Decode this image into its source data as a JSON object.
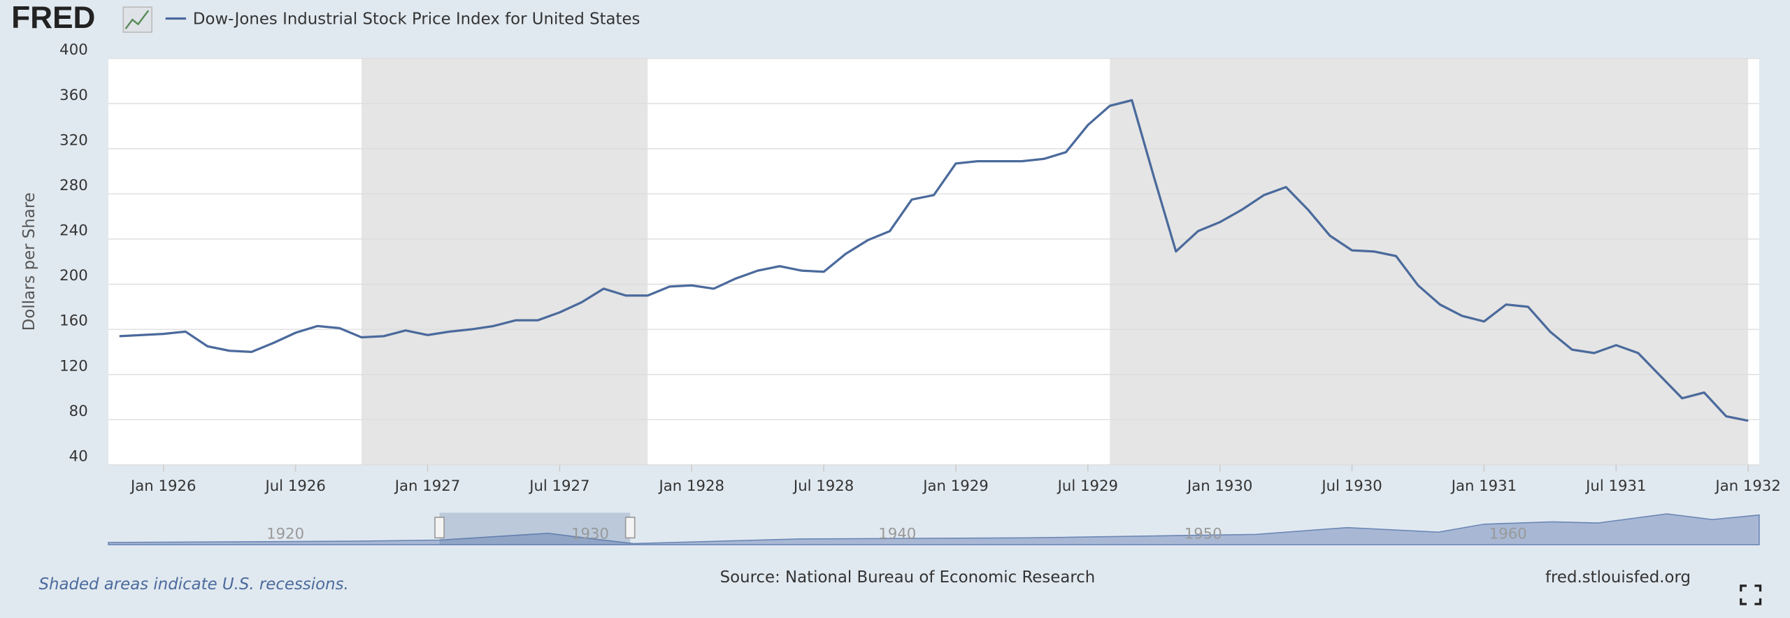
{
  "logo": "FRED",
  "chart_data": {
    "type": "line",
    "title": "Dow-Jones Industrial Stock Price Index for United States",
    "ylabel": "Dollars per Share",
    "x": [
      "1925-11",
      "1925-12",
      "1926-01",
      "1926-02",
      "1926-03",
      "1926-04",
      "1926-05",
      "1926-06",
      "1926-07",
      "1926-08",
      "1926-09",
      "1926-10",
      "1926-11",
      "1926-12",
      "1927-01",
      "1927-02",
      "1927-03",
      "1927-04",
      "1927-05",
      "1927-06",
      "1927-07",
      "1927-08",
      "1927-09",
      "1927-10",
      "1927-11",
      "1927-12",
      "1928-01",
      "1928-02",
      "1928-03",
      "1928-04",
      "1928-05",
      "1928-06",
      "1928-07",
      "1928-08",
      "1928-09",
      "1928-10",
      "1928-11",
      "1928-12",
      "1929-01",
      "1929-02",
      "1929-03",
      "1929-04",
      "1929-05",
      "1929-06",
      "1929-07",
      "1929-08",
      "1929-09",
      "1929-10",
      "1929-11",
      "1929-12",
      "1930-01",
      "1930-02",
      "1930-03",
      "1930-04",
      "1930-05",
      "1930-06",
      "1930-07",
      "1930-08",
      "1930-09",
      "1930-10",
      "1930-11",
      "1930-12",
      "1931-01",
      "1931-02",
      "1931-03",
      "1931-04",
      "1931-05",
      "1931-06",
      "1931-07",
      "1931-08",
      "1931-09",
      "1931-10",
      "1931-11",
      "1931-12",
      "1932-01"
    ],
    "series": [
      {
        "name": "Dow-Jones Industrial Stock Price Index for United States",
        "color": "#4b6a9c",
        "values": [
          154,
          155,
          156,
          158,
          145,
          141,
          140,
          148,
          157,
          163,
          161,
          153,
          154,
          159,
          155,
          158,
          160,
          163,
          168,
          168,
          175,
          184,
          196,
          190,
          190,
          198,
          199,
          196,
          205,
          212,
          216,
          212,
          211,
          227,
          239,
          247,
          275,
          279,
          307,
          309,
          309,
          309,
          311,
          317,
          341,
          358,
          363,
          295,
          229,
          247,
          255,
          266,
          279,
          286,
          266,
          243,
          230,
          229,
          225,
          199,
          182,
          172,
          167,
          182,
          180,
          158,
          142,
          139,
          146,
          139,
          119,
          99,
          104,
          83,
          79
        ]
      }
    ],
    "xlim": [
      "1925-11",
      "1932-01"
    ],
    "xticks": [
      {
        "value": "1926-01",
        "label": "Jan 1926"
      },
      {
        "value": "1926-07",
        "label": "Jul 1926"
      },
      {
        "value": "1927-01",
        "label": "Jan 1927"
      },
      {
        "value": "1927-07",
        "label": "Jul 1927"
      },
      {
        "value": "1928-01",
        "label": "Jan 1928"
      },
      {
        "value": "1928-07",
        "label": "Jul 1928"
      },
      {
        "value": "1929-01",
        "label": "Jan 1929"
      },
      {
        "value": "1929-07",
        "label": "Jul 1929"
      },
      {
        "value": "1930-01",
        "label": "Jan 1930"
      },
      {
        "value": "1930-07",
        "label": "Jul 1930"
      },
      {
        "value": "1931-01",
        "label": "Jan 1931"
      },
      {
        "value": "1931-07",
        "label": "Jul 1931"
      },
      {
        "value": "1932-01",
        "label": "Jan 1932"
      }
    ],
    "ylim": [
      40,
      400
    ],
    "yticks": [
      40,
      80,
      120,
      160,
      200,
      240,
      280,
      320,
      360,
      400
    ],
    "grid": true,
    "recessions": [
      {
        "start": "1926-10",
        "end": "1927-11"
      },
      {
        "start": "1929-08",
        "end": "1932-01"
      }
    ],
    "recession_color": "#e5e5e5",
    "navigator_labels": [
      "1920",
      "1930",
      "1940",
      "1950",
      "1960"
    ],
    "note": "Shaded areas indicate U.S. recessions.",
    "source": "Source: National Bureau of Economic Research",
    "site": "fred.stlouisfed.org"
  }
}
